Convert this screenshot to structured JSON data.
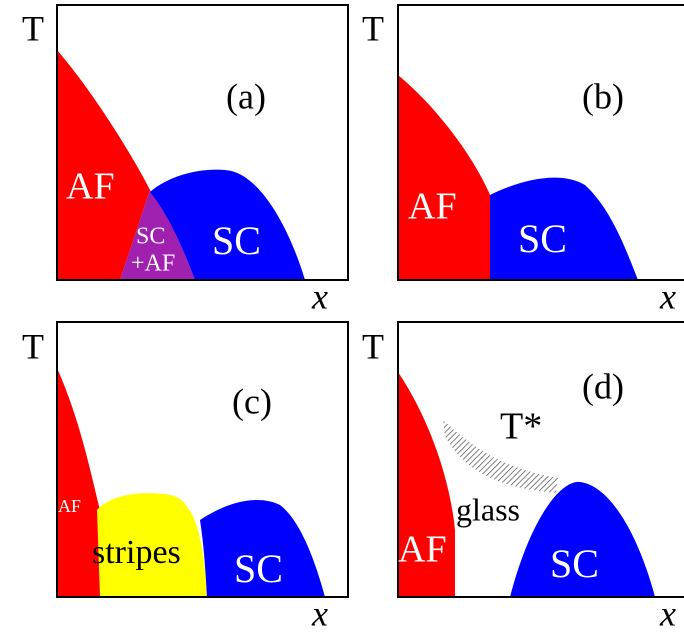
{
  "panels": [
    {
      "label": "(a)",
      "y_axis": "T",
      "x_axis": "x",
      "regions": [
        "AF",
        "SC",
        "+AF",
        "SC"
      ]
    },
    {
      "label": "(b)",
      "y_axis": "T",
      "x_axis": "x",
      "regions": [
        "AF",
        "SC"
      ]
    },
    {
      "label": "(c)",
      "y_axis": "T",
      "x_axis": "x",
      "regions": [
        "AF",
        "stripes",
        "SC"
      ]
    },
    {
      "label": "(d)",
      "y_axis": "T",
      "x_axis": "x",
      "regions": [
        "T*",
        "glass",
        "AF",
        "SC"
      ]
    }
  ]
}
